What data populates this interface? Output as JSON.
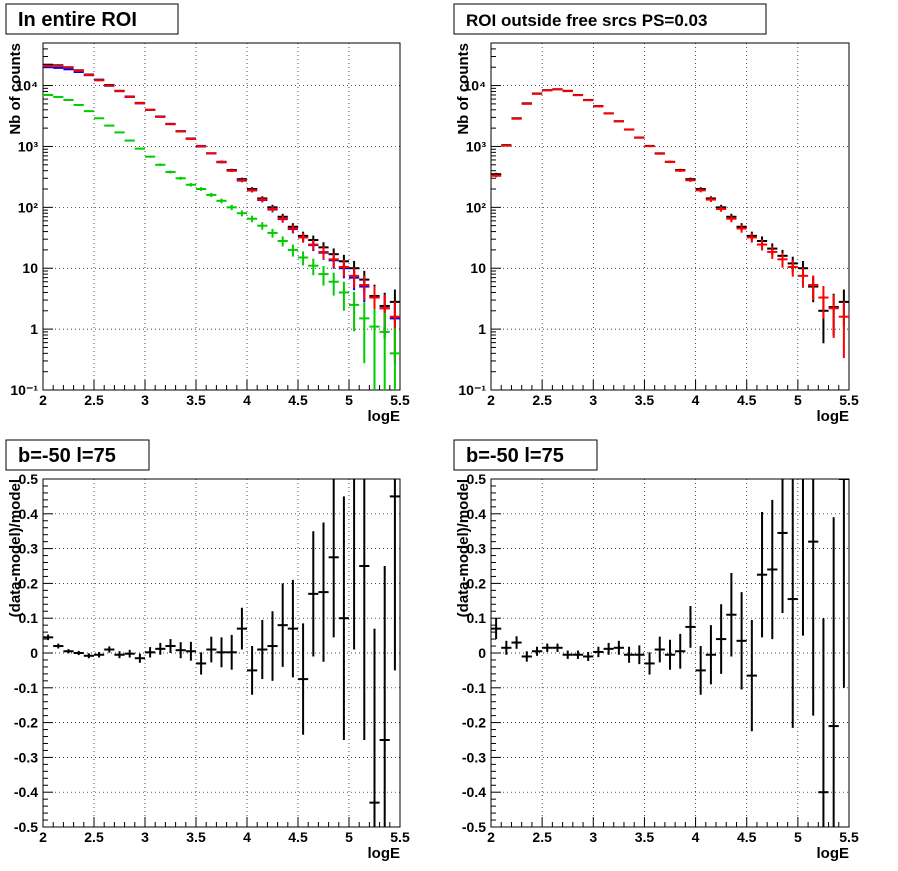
{
  "chart_data": [
    {
      "type": "scatter",
      "title": "In entire ROI",
      "xlabel": "logE",
      "ylabel": "Nb of counts",
      "xlim": [
        2,
        5.5
      ],
      "ylim": [
        0.1,
        50000
      ],
      "y_scale": "log",
      "grid": true,
      "x_ticks": [
        "2",
        "2.5",
        "3",
        "3.5",
        "4",
        "4.5",
        "5",
        "5.5"
      ],
      "y_ticks": [
        "10⁻¹",
        "1",
        "10",
        "10²",
        "10³",
        "10⁴"
      ],
      "series": [
        {
          "color": "#000000",
          "x": [
            2.05,
            2.15,
            2.25,
            2.35,
            2.45,
            2.55,
            2.65,
            2.75,
            2.85,
            2.95,
            3.05,
            3.15,
            3.25,
            3.35,
            3.45,
            3.55,
            3.65,
            3.75,
            3.85,
            3.95,
            4.05,
            4.15,
            4.25,
            4.35,
            4.45,
            4.55,
            4.65,
            4.75,
            4.85,
            4.95,
            5.05,
            5.15,
            5.25,
            5.35,
            5.45
          ],
          "y": [
            22000,
            21500,
            20000,
            17800,
            15200,
            12500,
            10200,
            8200,
            6600,
            5200,
            4000,
            3100,
            2350,
            1780,
            1350,
            1000,
            770,
            560,
            410,
            290,
            200,
            140,
            100,
            70,
            48,
            34,
            29,
            22,
            17,
            13,
            10,
            6.5,
            3.5,
            2.4,
            2.8
          ]
        },
        {
          "color": "#0000ff",
          "x": [
            2.05,
            2.15,
            2.25,
            2.35,
            2.45,
            2.55,
            2.65,
            2.75,
            2.85,
            2.95,
            3.05,
            3.15,
            3.25,
            3.35,
            3.45,
            3.55,
            3.65,
            3.75,
            3.85,
            3.95,
            4.05,
            4.15,
            4.25,
            4.35,
            4.45,
            4.55,
            4.65,
            4.75,
            4.85,
            4.95,
            5.05,
            5.15,
            5.25,
            5.35,
            5.45
          ],
          "y": [
            20000,
            19500,
            18500,
            16700,
            14800,
            12300,
            9900,
            8100,
            6500,
            5100,
            3980,
            3080,
            2330,
            1770,
            1340,
            1020,
            770,
            550,
            400,
            275,
            190,
            132,
            92,
            64,
            44,
            32,
            24,
            18,
            13.5,
            10,
            7,
            5,
            3.3,
            2.2,
            1.5
          ]
        },
        {
          "color": "#ff0000",
          "x": [
            2.05,
            2.15,
            2.25,
            2.35,
            2.45,
            2.55,
            2.65,
            2.75,
            2.85,
            2.95,
            3.05,
            3.15,
            3.25,
            3.35,
            3.45,
            3.55,
            3.65,
            3.75,
            3.85,
            3.95,
            4.05,
            4.15,
            4.25,
            4.35,
            4.45,
            4.55,
            4.65,
            4.75,
            4.85,
            4.95,
            5.05,
            5.15,
            5.25,
            5.35,
            5.45
          ],
          "y": [
            21000,
            21000,
            19800,
            17500,
            15000,
            12200,
            10000,
            8100,
            6550,
            5150,
            3980,
            3060,
            2320,
            1760,
            1330,
            1010,
            770,
            555,
            400,
            278,
            190,
            134,
            94,
            65,
            45,
            32,
            24.5,
            18.5,
            14,
            10.5,
            7.5,
            5.3,
            3.3,
            2.2,
            1.6
          ]
        },
        {
          "color": "#00cc00",
          "x": [
            2.05,
            2.15,
            2.25,
            2.35,
            2.45,
            2.55,
            2.65,
            2.75,
            2.85,
            2.95,
            3.05,
            3.15,
            3.25,
            3.35,
            3.45,
            3.55,
            3.65,
            3.75,
            3.85,
            3.95,
            4.05,
            4.15,
            4.25,
            4.35,
            4.45,
            4.55,
            4.65,
            4.75,
            4.85,
            4.95,
            5.05,
            5.15,
            5.25,
            5.35,
            5.45
          ],
          "y": [
            7000,
            6500,
            5800,
            4800,
            3800,
            2900,
            2200,
            1700,
            1250,
            920,
            680,
            500,
            380,
            300,
            235,
            200,
            160,
            128,
            100,
            80,
            65,
            50,
            38,
            28,
            20,
            15,
            11,
            8,
            6,
            4,
            2.5,
            1.5,
            1.1,
            0.9,
            0.4
          ]
        }
      ]
    },
    {
      "type": "scatter",
      "title": "ROI outside free srcs PS=0.03",
      "xlabel": "logE",
      "ylabel": "Nb of counts",
      "xlim": [
        2,
        5.5
      ],
      "ylim": [
        0.1,
        50000
      ],
      "y_scale": "log",
      "grid": true,
      "x_ticks": [
        "2",
        "2.5",
        "3",
        "3.5",
        "4",
        "4.5",
        "5",
        "5.5"
      ],
      "y_ticks": [
        "10⁻¹",
        "1",
        "10",
        "10²",
        "10³",
        "10⁴"
      ],
      "series": [
        {
          "color": "#000000",
          "x": [
            2.05,
            2.15,
            2.25,
            2.35,
            2.45,
            2.55,
            2.65,
            2.75,
            2.85,
            2.95,
            3.05,
            3.15,
            3.25,
            3.35,
            3.45,
            3.55,
            3.65,
            3.75,
            3.85,
            3.95,
            4.05,
            4.15,
            4.25,
            4.35,
            4.45,
            4.55,
            4.65,
            4.75,
            4.85,
            4.95,
            5.05,
            5.15,
            5.25,
            5.35,
            5.45
          ],
          "y": [
            350,
            1050,
            2900,
            5100,
            7400,
            8400,
            8700,
            8200,
            7000,
            5800,
            4600,
            3500,
            2600,
            1900,
            1400,
            1020,
            770,
            560,
            410,
            290,
            200,
            140,
            100,
            70,
            48,
            34,
            28,
            21,
            16,
            12,
            10,
            5,
            2,
            2.3,
            2.8
          ]
        },
        {
          "color": "#ff0000",
          "x": [
            2.05,
            2.15,
            2.25,
            2.35,
            2.45,
            2.55,
            2.65,
            2.75,
            2.85,
            2.95,
            3.05,
            3.15,
            3.25,
            3.35,
            3.45,
            3.55,
            3.65,
            3.75,
            3.85,
            3.95,
            4.05,
            4.15,
            4.25,
            4.35,
            4.45,
            4.55,
            4.65,
            4.75,
            4.85,
            4.95,
            5.05,
            5.15,
            5.25,
            5.35,
            5.45
          ],
          "y": [
            330,
            1030,
            2850,
            5000,
            7300,
            8350,
            8650,
            8100,
            6950,
            5750,
            4550,
            3480,
            2580,
            1890,
            1390,
            1010,
            760,
            555,
            400,
            278,
            190,
            134,
            94,
            65,
            45,
            32,
            24.5,
            18.5,
            14,
            10.5,
            7.5,
            5.3,
            3.3,
            2.2,
            1.6
          ]
        }
      ]
    },
    {
      "type": "scatter",
      "title": "b=-50 l=75",
      "xlabel": "logE",
      "ylabel": "(data-model)/model",
      "xlim": [
        2,
        5.5
      ],
      "ylim": [
        -0.5,
        0.5
      ],
      "grid": true,
      "x_ticks": [
        "2",
        "2.5",
        "3",
        "3.5",
        "4",
        "4.5",
        "5",
        "5.5"
      ],
      "y_ticks": [
        "-0.5",
        "-0.4",
        "-0.3",
        "-0.2",
        "-0.1",
        "0",
        "0.1",
        "0.2",
        "0.3",
        "0.4",
        "0.5"
      ],
      "series": [
        {
          "color": "#000000",
          "x": [
            2.05,
            2.15,
            2.25,
            2.35,
            2.45,
            2.55,
            2.65,
            2.75,
            2.85,
            2.95,
            3.05,
            3.15,
            3.25,
            3.35,
            3.45,
            3.55,
            3.65,
            3.75,
            3.85,
            3.95,
            4.05,
            4.15,
            4.25,
            4.35,
            4.45,
            4.55,
            4.65,
            4.75,
            4.85,
            4.95,
            5.05,
            5.15,
            5.25,
            5.35,
            5.45
          ],
          "y": [
            0.045,
            0.02,
            0.005,
            0.0,
            -0.008,
            -0.005,
            0.01,
            -0.005,
            -0.002,
            -0.015,
            0.002,
            0.012,
            0.02,
            0.008,
            0.005,
            -0.03,
            0.01,
            0.002,
            0.002,
            0.07,
            -0.05,
            0.01,
            0.02,
            0.08,
            0.07,
            -0.075,
            0.17,
            0.175,
            0.275,
            0.1,
            0.51,
            0.25,
            -0.43,
            -0.25,
            0.45
          ],
          "err": [
            0.008,
            0.007,
            0.006,
            0.006,
            0.007,
            0.008,
            0.009,
            0.01,
            0.011,
            0.013,
            0.015,
            0.017,
            0.02,
            0.023,
            0.027,
            0.032,
            0.037,
            0.043,
            0.05,
            0.06,
            0.07,
            0.085,
            0.1,
            0.12,
            0.14,
            0.16,
            0.18,
            0.2,
            0.23,
            0.35,
            0.5,
            0.5,
            0.5,
            0.5,
            0.5
          ]
        }
      ]
    },
    {
      "type": "scatter",
      "title": "b=-50 l=75",
      "xlabel": "logE",
      "ylabel": "(data-model)/model",
      "xlim": [
        2,
        5.5
      ],
      "ylim": [
        -0.5,
        0.5
      ],
      "grid": true,
      "x_ticks": [
        "2",
        "2.5",
        "3",
        "3.5",
        "4",
        "4.5",
        "5",
        "5.5"
      ],
      "y_ticks": [
        "-0.5",
        "-0.4",
        "-0.3",
        "-0.2",
        "-0.1",
        "0",
        "0.1",
        "0.2",
        "0.3",
        "0.4",
        "0.5"
      ],
      "series": [
        {
          "color": "#000000",
          "x": [
            2.05,
            2.15,
            2.25,
            2.35,
            2.45,
            2.55,
            2.65,
            2.75,
            2.85,
            2.95,
            3.05,
            3.15,
            3.25,
            3.35,
            3.45,
            3.55,
            3.65,
            3.75,
            3.85,
            3.95,
            4.05,
            4.15,
            4.25,
            4.35,
            4.45,
            4.55,
            4.65,
            4.75,
            4.85,
            4.95,
            5.05,
            5.15,
            5.25,
            5.35,
            5.45
          ],
          "y": [
            0.07,
            0.015,
            0.03,
            -0.01,
            0.005,
            0.015,
            0.015,
            -0.005,
            -0.005,
            -0.01,
            0.003,
            0.012,
            0.015,
            -0.005,
            -0.005,
            -0.03,
            0.01,
            -0.005,
            0.005,
            0.075,
            -0.05,
            -0.005,
            0.04,
            0.11,
            0.035,
            -0.065,
            0.225,
            0.24,
            0.345,
            0.155,
            0.55,
            0.32,
            -0.4,
            -0.21,
            0.5
          ],
          "err": [
            0.03,
            0.02,
            0.018,
            0.015,
            0.013,
            0.012,
            0.012,
            0.012,
            0.012,
            0.013,
            0.015,
            0.017,
            0.02,
            0.023,
            0.027,
            0.032,
            0.037,
            0.043,
            0.05,
            0.06,
            0.07,
            0.085,
            0.1,
            0.12,
            0.14,
            0.16,
            0.18,
            0.2,
            0.23,
            0.37,
            0.5,
            0.5,
            0.5,
            0.6,
            0.6
          ]
        }
      ]
    }
  ]
}
